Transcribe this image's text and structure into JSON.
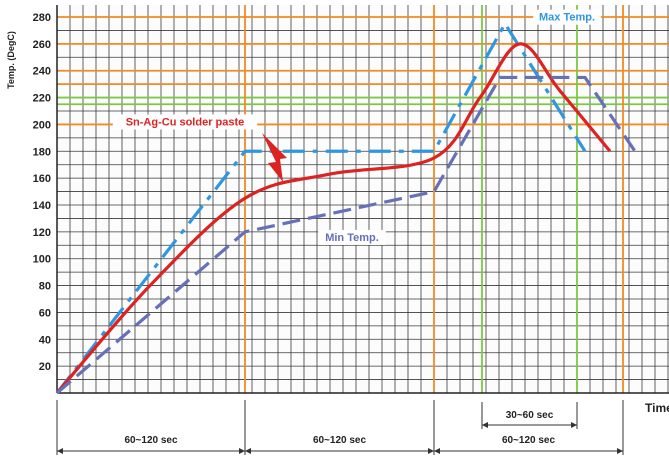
{
  "chart_data": {
    "type": "line",
    "xlabel": "Time",
    "ylabel": "Temp. (DegC)",
    "ylim": [
      0,
      285
    ],
    "xlim": [
      0,
      640
    ],
    "yticks": [
      20,
      40,
      60,
      80,
      100,
      120,
      140,
      160,
      180,
      200,
      220,
      240,
      260,
      280
    ],
    "grid": true,
    "reference_lines": {
      "horizontal_orange": [
        280,
        260,
        240,
        230,
        200
      ],
      "horizontal_green": [
        215,
        220
      ],
      "vertical_orange": [
        50,
        185,
        240,
        440,
        620
      ],
      "vertical_green": [
        480,
        575
      ]
    },
    "series": [
      {
        "name": "Max Temp.",
        "color": "#2f97e0",
        "dash": "dash-dot",
        "x": [
          57,
          245,
          434,
          505,
          585
        ],
        "y": [
          0,
          180,
          180,
          275,
          180
        ]
      },
      {
        "name": "Sn-Ag-Cu solder paste",
        "color": "#dd2222",
        "dash": "solid",
        "x": [
          57,
          150,
          245,
          330,
          434,
          480,
          520,
          560,
          610
        ],
        "y": [
          0,
          80,
          145,
          163,
          175,
          220,
          260,
          225,
          180
        ]
      },
      {
        "name": "Min Temp.",
        "color": "#6570b8",
        "dash": "dashed",
        "x": [
          57,
          245,
          434,
          500,
          585,
          635
        ],
        "y": [
          0,
          120,
          150,
          235,
          235,
          180
        ]
      }
    ],
    "annotations": [
      {
        "text": "Max Temp.",
        "x": 567,
        "y": 278,
        "color": "#2f97e0"
      },
      {
        "text": "Sn-Ag-Cu solder paste",
        "x": 185,
        "y": 200,
        "color": "#dd2222"
      },
      {
        "text": "Min Temp.",
        "x": 352,
        "y": 114,
        "color": "#6570b8"
      }
    ],
    "intervals": [
      {
        "label": "60~120 sec",
        "x0": 57,
        "x1": 245,
        "row": "bottom"
      },
      {
        "label": "60~120 sec",
        "x0": 245,
        "x1": 434,
        "row": "bottom"
      },
      {
        "label": "60~120 sec",
        "x0": 434,
        "x1": 623,
        "row": "bottom"
      },
      {
        "label": "30~60 sec",
        "x0": 482,
        "x1": 577,
        "row": "upper"
      }
    ]
  }
}
